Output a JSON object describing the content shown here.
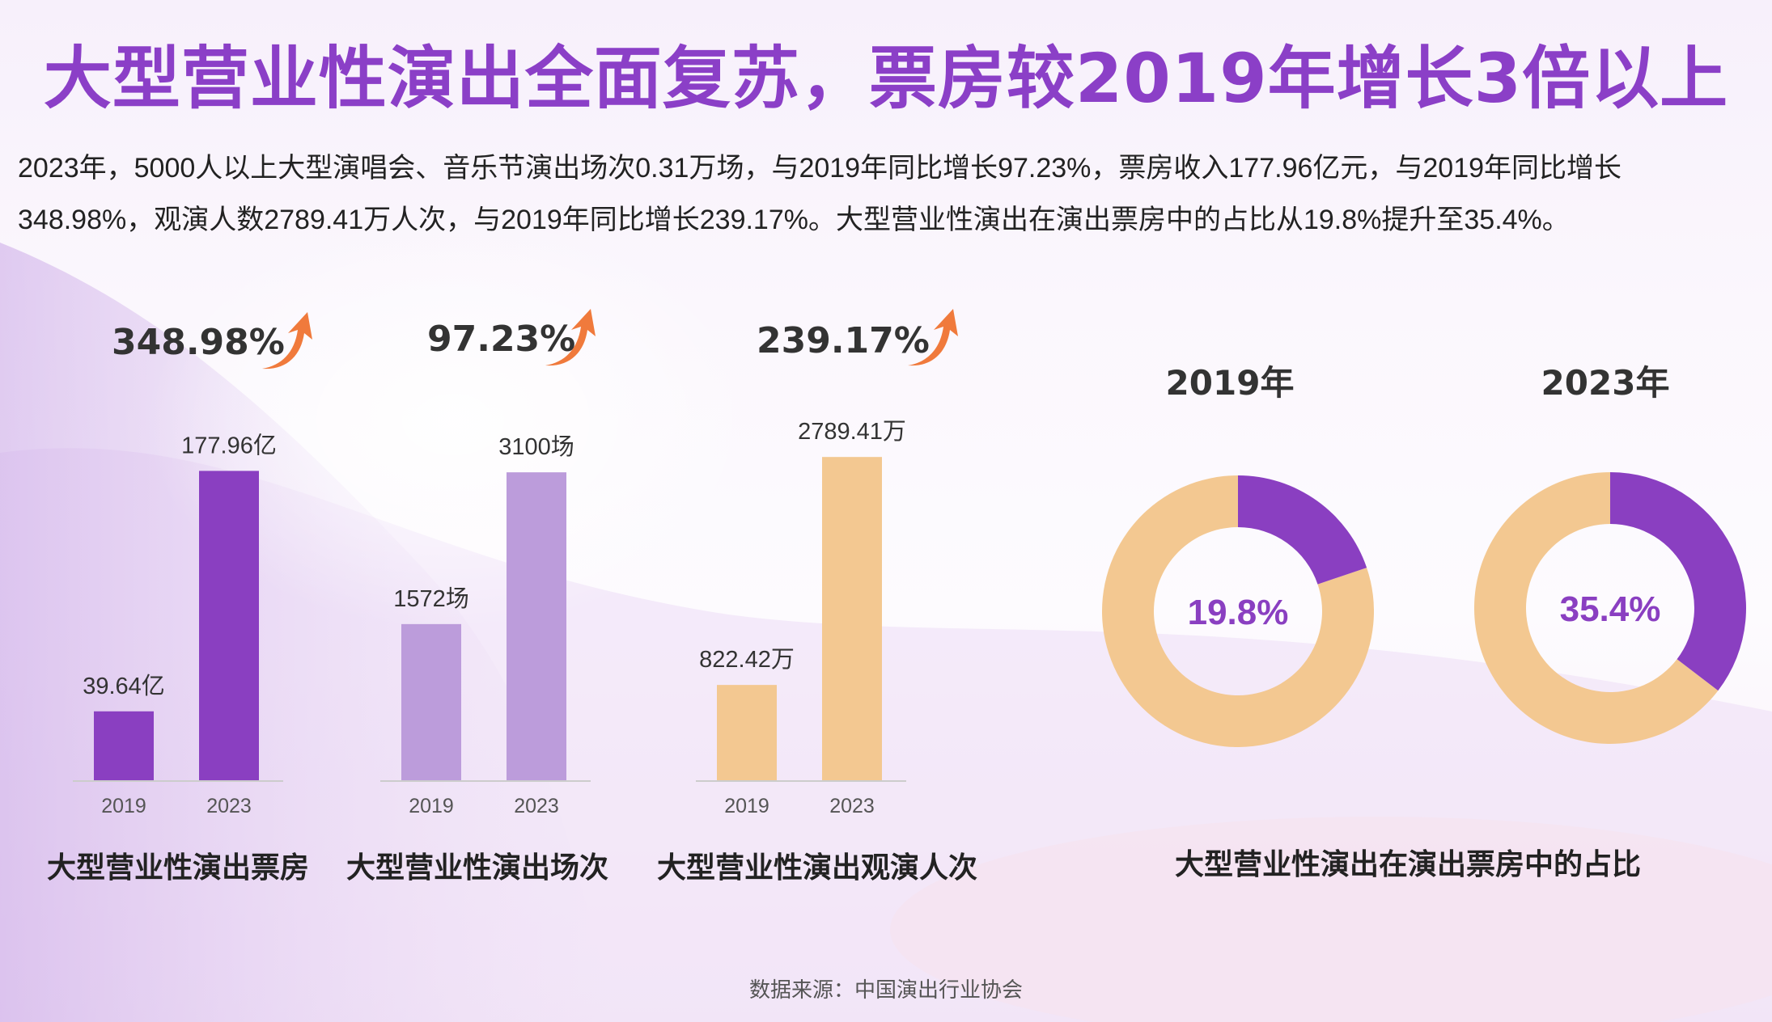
{
  "title": "大型营业性演出全面复苏，票房较2019年增长3倍以上",
  "description": "2023年，5000人以上大型演唱会、音乐节演出场次0.31万场，与2019年同比增长97.23%，票房收入177.96亿元，与2019年同比增长348.98%，观演人数2789.41万人次，与2019年同比增长239.17%。大型营业性演出在演出票房中的占比从19.8%提升至35.4%。",
  "source": "数据来源：中国演出行业协会",
  "colors": {
    "title": "#8b3fc7",
    "bar_dark_purple": "#8a3fc1",
    "bar_light_purple": "#bc9cdb",
    "bar_peach": "#f3c891",
    "donut_purple": "#8a3fc1",
    "donut_peach": "#f3c891",
    "arrow": "#f07a3c"
  },
  "icons": [
    "growth-arrow-icon"
  ],
  "chart_data": [
    {
      "type": "bar",
      "title": "大型营业性演出票房",
      "growth_label": "348.98%",
      "categories": [
        "2019",
        "2023"
      ],
      "values": [
        39.64,
        177.96
      ],
      "value_labels": [
        "39.64亿",
        "177.96亿"
      ],
      "ylim": [
        0,
        200
      ],
      "grid": false
    },
    {
      "type": "bar",
      "title": "大型营业性演出场次",
      "growth_label": "97.23%",
      "categories": [
        "2019",
        "2023"
      ],
      "values": [
        1572,
        3100
      ],
      "value_labels": [
        "1572场",
        "3100场"
      ],
      "ylim": [
        0,
        3500
      ],
      "grid": false
    },
    {
      "type": "bar",
      "title": "大型营业性演出观演人次",
      "growth_label": "239.17%",
      "categories": [
        "2019",
        "2023"
      ],
      "values": [
        822.42,
        2789.41
      ],
      "value_labels": [
        "822.42万",
        "2789.41万"
      ],
      "ylim": [
        0,
        3000
      ],
      "grid": false
    },
    {
      "type": "pie",
      "title": "大型营业性演出在演出票房中的占比",
      "donuts": [
        {
          "label": "2019年",
          "value": 19.8,
          "value_label": "19.8%"
        },
        {
          "label": "2023年",
          "value": 35.4,
          "value_label": "35.4%"
        }
      ]
    }
  ]
}
